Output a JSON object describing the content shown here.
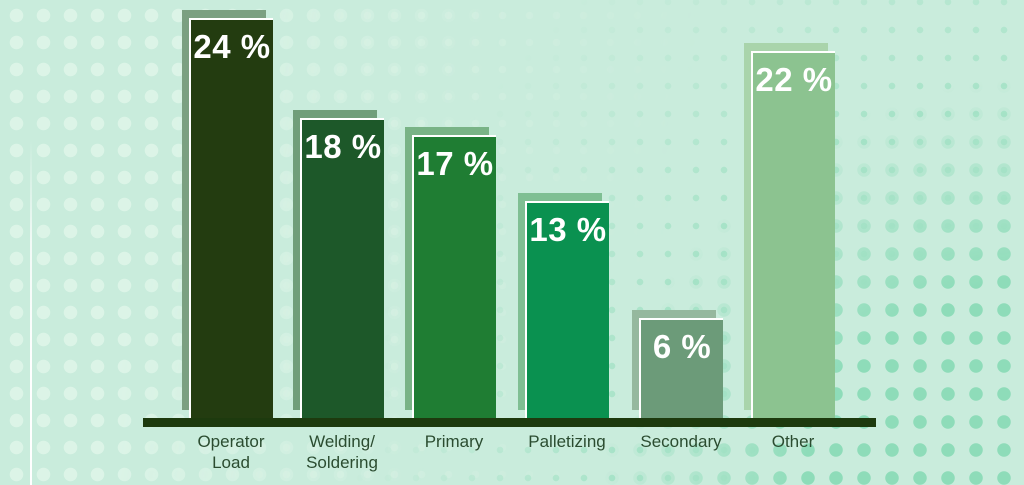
{
  "chart_data": {
    "type": "bar",
    "title": "",
    "xlabel": "",
    "ylabel": "",
    "ylim": [
      0,
      25
    ],
    "grid": false,
    "legend": false,
    "categories": [
      "Operator\nLoad",
      "Welding/\nSoldering",
      "Primary",
      "Palletizing",
      "Secondary",
      "Other"
    ],
    "values": [
      24,
      18,
      17,
      13,
      6,
      22
    ],
    "value_labels": [
      "24 %",
      "18 %",
      "17 %",
      "13 %",
      "6 %",
      "22 %"
    ],
    "bar_colors": [
      "#233c10",
      "#1d5829",
      "#1f7d33",
      "#0a9150",
      "#6c9b79",
      "#8cc390"
    ],
    "bar_shadow_colors": [
      "#7ba081",
      "#709e7a",
      "#79b386",
      "#7fbf93",
      "#95b89e",
      "#a9d4ab"
    ],
    "colors": {
      "background": "#c9ecdc",
      "baseline": "#1d3a0e",
      "value_label": "#ffffff",
      "category_label": "#2b4c30",
      "dots_light": "#dcf4e7",
      "dots_dark": "#8edcb9",
      "bar_outline": "#ffffff"
    }
  }
}
